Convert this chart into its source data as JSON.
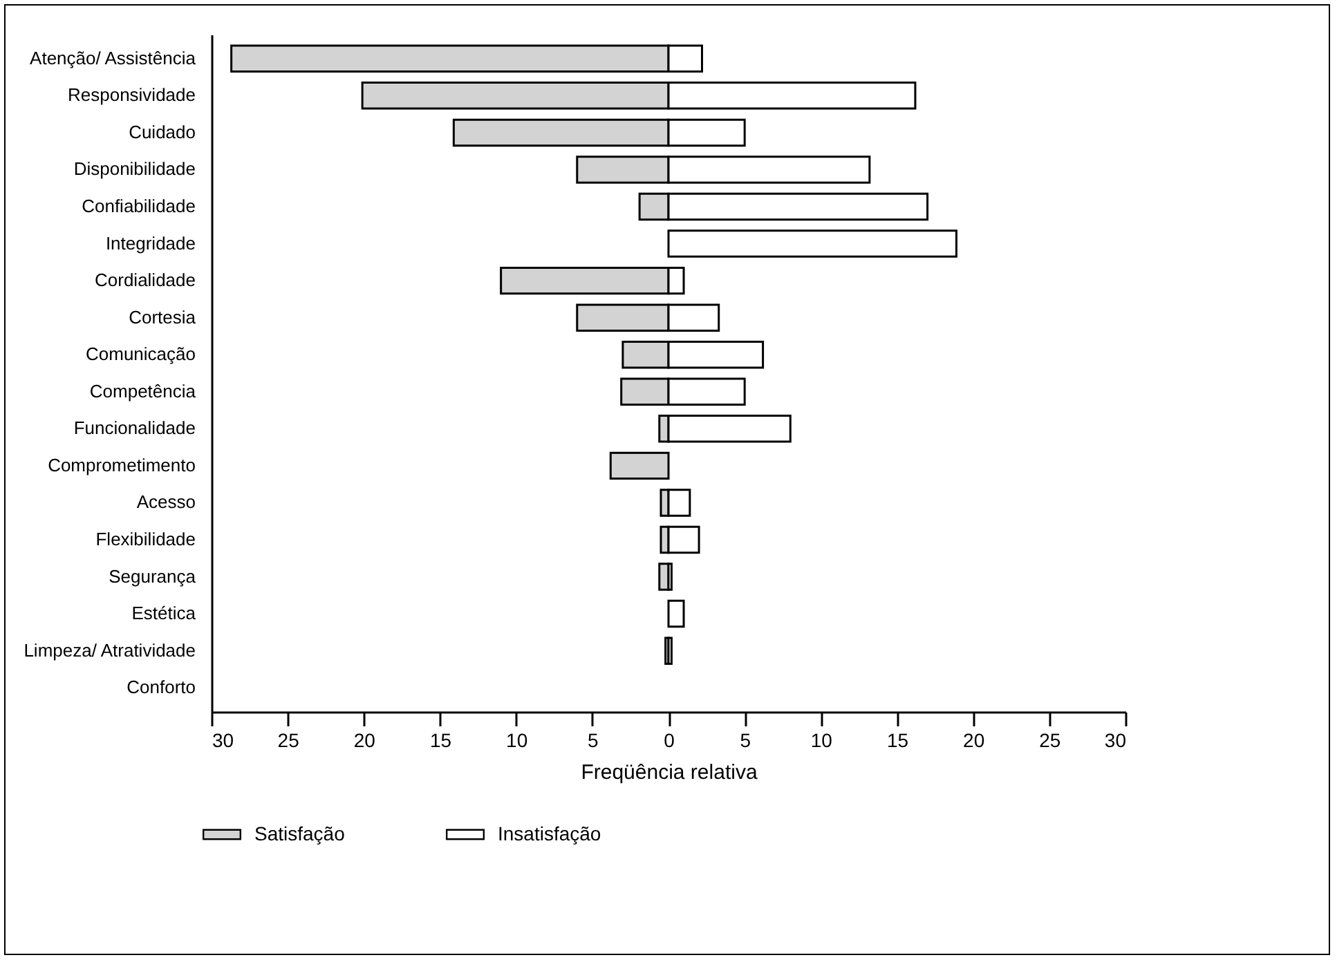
{
  "chart_data": {
    "type": "bar",
    "orientation": "horizontal",
    "stacked": true,
    "xlabel": "Freqüência relativa",
    "categories": [
      "Atenção/ Assistência",
      "Responsividade",
      "Cuidado",
      "Disponibilidade",
      "Confiabilidade",
      "Integridade",
      "Cordialidade",
      "Cortesia",
      "Comunicação",
      "Competência",
      "Funcionalidade",
      "Comprometimento",
      "Acesso",
      "Flexibilidade",
      "Segurança",
      "Estética",
      "Limpeza/ Atratividade",
      "Conforto"
    ],
    "series": [
      {
        "name": "Satisfação",
        "color": "#d3d3d3",
        "values": [
          -28.7,
          -20.1,
          -14.1,
          -6.0,
          -1.9,
          null,
          -11.0,
          -6.0,
          -3.0,
          -3.1,
          -0.6,
          -3.8,
          -0.5,
          -0.5,
          -0.6,
          null,
          -0.2,
          null
        ]
      },
      {
        "name": "Insatisfação",
        "color": "#ffffff",
        "values": [
          2.2,
          16.2,
          5.0,
          13.2,
          17.0,
          18.9,
          1.0,
          3.3,
          6.2,
          5.0,
          8.0,
          null,
          1.4,
          2.0,
          0.2,
          1.0,
          0.2,
          null
        ]
      }
    ],
    "xlim": [
      -30,
      30
    ],
    "xticks": [
      {
        "value": -30,
        "label": "30"
      },
      {
        "value": -25,
        "label": "25"
      },
      {
        "value": -20,
        "label": "20"
      },
      {
        "value": -15,
        "label": "15"
      },
      {
        "value": -10,
        "label": "10"
      },
      {
        "value": -5,
        "label": "5"
      },
      0,
      5,
      10,
      15,
      20,
      25,
      30
    ],
    "grid": false,
    "legend": "bottom"
  }
}
